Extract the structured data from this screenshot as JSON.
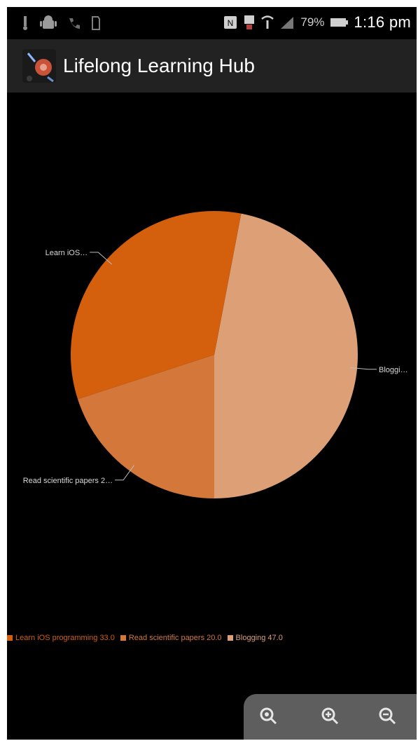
{
  "status_bar": {
    "battery": "79%",
    "time": "1:16 pm",
    "icons_left": [
      "usb-icon",
      "android-icon",
      "missed-call-icon",
      "sd-card-icon"
    ],
    "icons_right": [
      "nfc-icon",
      "cast-icon",
      "wifi-icon",
      "signal-icon",
      "battery-icon"
    ]
  },
  "action_bar": {
    "title": "Lifelong Learning Hub",
    "icon": "app-logo-icon"
  },
  "chart_data": {
    "type": "pie",
    "slices": [
      {
        "label": "Blogging",
        "value": 47.0,
        "short_label": "Bloggi…",
        "legend": "Blogging 47.0",
        "color": "#dc9f76"
      },
      {
        "label": "Learn iOS programming",
        "value": 33.0,
        "short_label": "Learn iOS…",
        "legend": "Learn iOS programming 33.0",
        "color": "#d45f0c"
      },
      {
        "label": "Read scientific papers",
        "value": 20.0,
        "short_label": "Read scientific papers 2…",
        "legend": "Read scientific papers 20.0",
        "color": "#d3783a"
      }
    ],
    "legend_order": [
      1,
      2,
      0
    ],
    "legend_placement": "bottom"
  },
  "zoom_controls": {
    "buttons": [
      "zoom-fit-icon",
      "zoom-in-icon",
      "zoom-out-icon"
    ]
  }
}
